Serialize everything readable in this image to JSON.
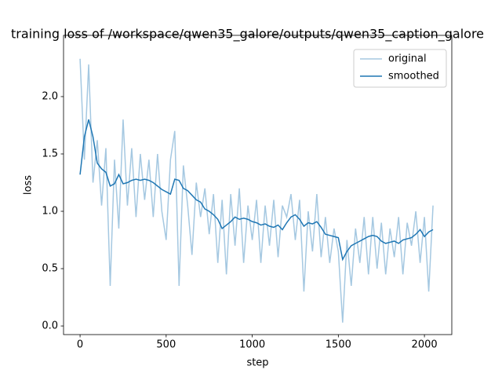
{
  "chart_data": {
    "type": "line",
    "title": "training loss of /workspace/qwen35_galore/outputs/qwen35_caption_galore",
    "xlabel": "step",
    "ylabel": "loss",
    "x": [
      0,
      25,
      50,
      75,
      100,
      125,
      150,
      175,
      200,
      225,
      250,
      275,
      300,
      325,
      350,
      375,
      400,
      425,
      450,
      475,
      500,
      525,
      550,
      575,
      600,
      625,
      650,
      675,
      700,
      725,
      750,
      775,
      800,
      825,
      850,
      875,
      900,
      925,
      950,
      975,
      1000,
      1025,
      1050,
      1075,
      1100,
      1125,
      1150,
      1175,
      1200,
      1225,
      1250,
      1275,
      1300,
      1325,
      1350,
      1375,
      1400,
      1425,
      1450,
      1475,
      1500,
      1525,
      1550,
      1575,
      1600,
      1625,
      1650,
      1675,
      1700,
      1725,
      1750,
      1775,
      1800,
      1825,
      1850,
      1875,
      1900,
      1925,
      1950,
      1975,
      2000,
      2025,
      2050
    ],
    "series": [
      {
        "name": "original",
        "color": "#a5c8e1",
        "values": [
          2.33,
          1.45,
          2.28,
          1.25,
          1.62,
          1.05,
          1.55,
          0.35,
          1.45,
          0.85,
          1.8,
          1.05,
          1.55,
          0.95,
          1.5,
          1.1,
          1.45,
          0.95,
          1.5,
          1.0,
          0.75,
          1.45,
          1.7,
          0.35,
          1.4,
          1.05,
          0.62,
          1.25,
          0.95,
          1.2,
          0.8,
          1.15,
          0.55,
          1.1,
          0.45,
          1.15,
          0.7,
          1.2,
          0.55,
          1.05,
          0.75,
          1.1,
          0.55,
          1.05,
          0.7,
          1.1,
          0.6,
          1.05,
          0.95,
          1.15,
          0.75,
          1.1,
          0.3,
          1.0,
          0.65,
          1.15,
          0.6,
          0.95,
          0.55,
          0.85,
          0.65,
          0.03,
          0.75,
          0.35,
          0.85,
          0.55,
          0.95,
          0.45,
          0.95,
          0.5,
          0.9,
          0.45,
          0.85,
          0.6,
          0.95,
          0.45,
          0.9,
          0.7,
          1.0,
          0.55,
          0.95,
          0.3,
          1.05
        ]
      },
      {
        "name": "smoothed",
        "color": "#1f77b4",
        "values": [
          1.32,
          1.65,
          1.8,
          1.65,
          1.42,
          1.37,
          1.34,
          1.22,
          1.24,
          1.32,
          1.24,
          1.25,
          1.27,
          1.28,
          1.27,
          1.28,
          1.27,
          1.25,
          1.22,
          1.19,
          1.17,
          1.15,
          1.28,
          1.27,
          1.2,
          1.18,
          1.14,
          1.1,
          1.08,
          1.02,
          1.0,
          0.97,
          0.93,
          0.85,
          0.88,
          0.91,
          0.95,
          0.93,
          0.94,
          0.93,
          0.91,
          0.9,
          0.88,
          0.89,
          0.87,
          0.86,
          0.88,
          0.84,
          0.9,
          0.95,
          0.97,
          0.93,
          0.87,
          0.9,
          0.89,
          0.91,
          0.86,
          0.8,
          0.79,
          0.78,
          0.77,
          0.58,
          0.65,
          0.7,
          0.72,
          0.74,
          0.76,
          0.78,
          0.79,
          0.78,
          0.74,
          0.72,
          0.73,
          0.74,
          0.72,
          0.75,
          0.76,
          0.77,
          0.8,
          0.84,
          0.78,
          0.82,
          0.84
        ]
      }
    ],
    "xlim": [
      -96,
      2159
    ],
    "ylim": [
      -0.075,
      2.534
    ],
    "xticks": [
      0,
      500,
      1000,
      1500,
      2000
    ],
    "yticks": [
      {
        "value": 0,
        "label": "0.0"
      },
      0.5,
      {
        "value": 1,
        "label": "1.0"
      },
      1.5,
      {
        "value": 2,
        "label": "2.0"
      }
    ],
    "grid": false,
    "legend": "upper right"
  }
}
